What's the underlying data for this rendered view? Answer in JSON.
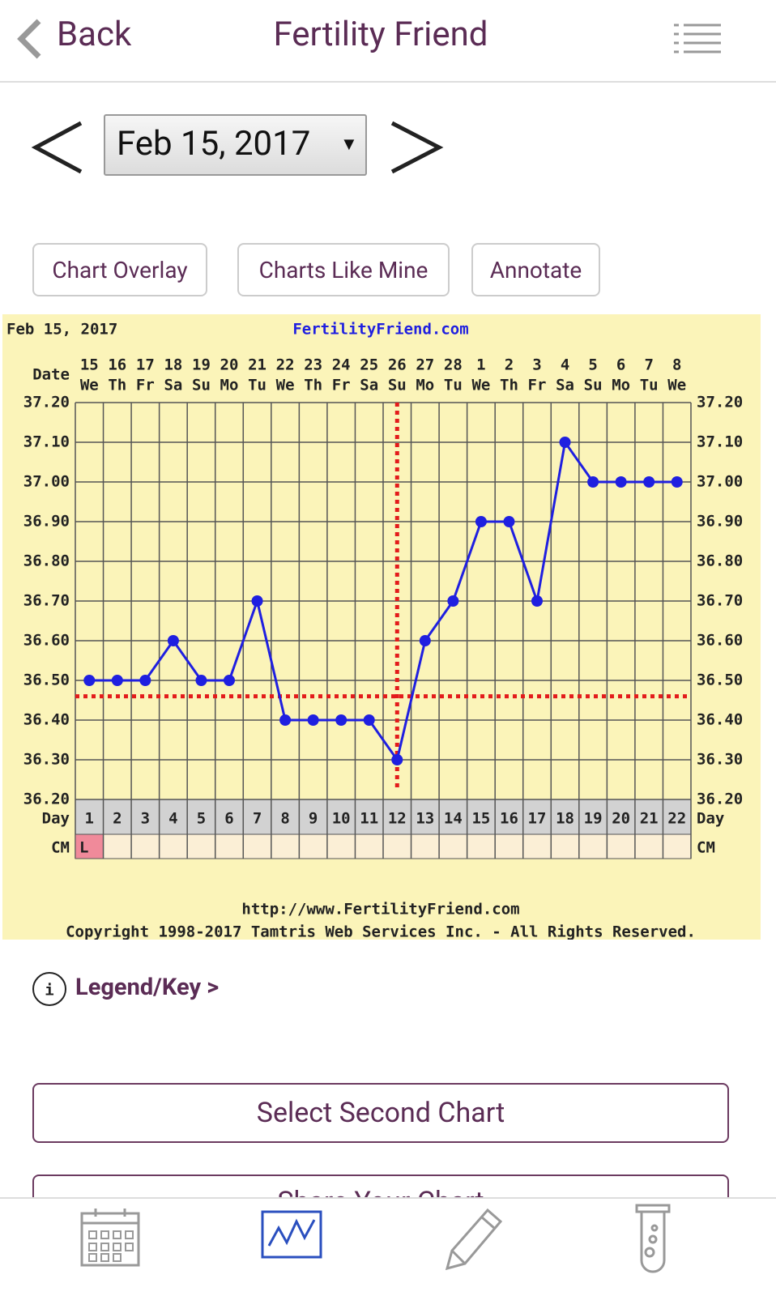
{
  "header": {
    "back": "Back",
    "title": "Fertility Friend"
  },
  "date_picker": {
    "value": "Feb 15, 2017"
  },
  "buttons": [
    "Chart Overlay",
    "Charts Like Mine",
    "Annotate"
  ],
  "chart_data": {
    "type": "line",
    "title": "Feb 15, 2017",
    "site": "FertilityFriend.com",
    "date_label": "Date",
    "day_label": "Day",
    "cm_label": "CM",
    "categories": [
      1,
      2,
      3,
      4,
      5,
      6,
      7,
      8,
      9,
      10,
      11,
      12,
      13,
      14,
      15,
      16,
      17,
      18,
      19,
      20,
      21,
      22
    ],
    "dates": [
      15,
      16,
      17,
      18,
      19,
      20,
      21,
      22,
      23,
      24,
      25,
      26,
      27,
      28,
      1,
      2,
      3,
      4,
      5,
      6,
      7,
      8
    ],
    "weekdays": [
      "We",
      "Th",
      "Fr",
      "Sa",
      "Su",
      "Mo",
      "Tu",
      "We",
      "Th",
      "Fr",
      "Sa",
      "Su",
      "Mo",
      "Tu",
      "We",
      "Th",
      "Fr",
      "Sa",
      "Su",
      "Mo",
      "Tu",
      "We"
    ],
    "cm": [
      "L",
      null,
      null,
      null,
      null,
      null,
      null,
      null,
      null,
      null,
      null,
      null,
      null,
      null,
      null,
      null,
      null,
      null,
      null,
      null,
      null,
      null
    ],
    "series": [
      {
        "color": "#1f1fe0",
        "values": [
          36.5,
          36.5,
          36.5,
          36.6,
          36.5,
          36.5,
          36.7,
          36.4,
          36.4,
          36.4,
          36.4,
          36.3,
          36.6,
          36.7,
          36.9,
          36.9,
          36.7,
          37.1,
          37.0,
          37.0,
          37.0,
          37.0
        ]
      }
    ],
    "coverline": 36.46,
    "ovulation_day": 12,
    "marker_color": "#e31b1b",
    "ylim": [
      36.2,
      37.2
    ],
    "yticks": [
      {
        "value": 37.2,
        "label": "37.20"
      },
      {
        "value": 37.1,
        "label": "37.10"
      },
      {
        "value": 37.0,
        "label": "37.00"
      },
      {
        "value": 36.9,
        "label": "36.90"
      },
      {
        "value": 36.8,
        "label": "36.80"
      },
      {
        "value": 36.7,
        "label": "36.70"
      },
      {
        "value": 36.6,
        "label": "36.60"
      },
      {
        "value": 36.5,
        "label": "36.50"
      },
      {
        "value": 36.4,
        "label": "36.40"
      },
      {
        "value": 36.3,
        "label": "36.30"
      },
      {
        "value": 36.2,
        "label": "36.20"
      }
    ],
    "grid": true,
    "url": "http://www.FertilityFriend.com",
    "copyright": "Copyright 1998-2017 Tamtris Web Services Inc. - All Rights Reserved."
  },
  "legend_link": "Legend/Key >",
  "actions": [
    "Select Second Chart",
    "Share Your Chart"
  ]
}
